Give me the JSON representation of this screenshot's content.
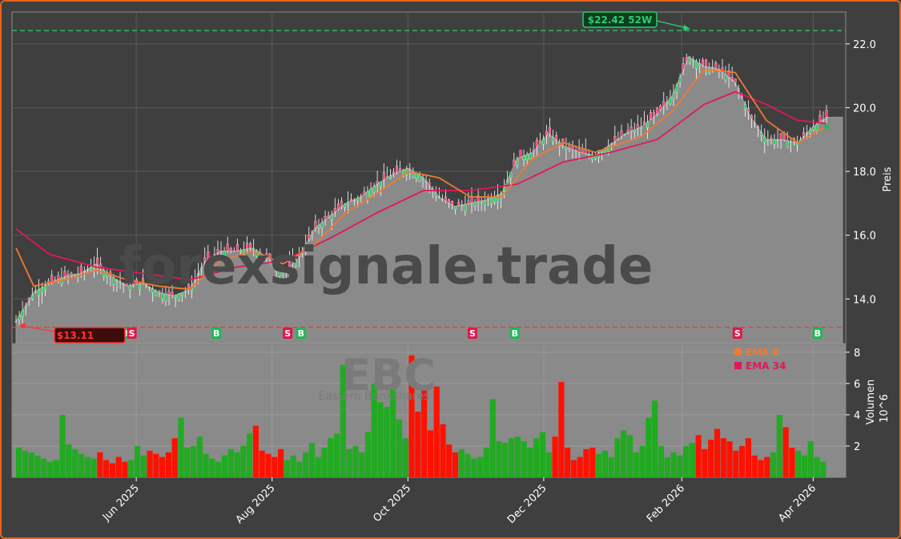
{
  "watermark": {
    "site": "forexsignale.trade",
    "ticker": "EBC",
    "company": "Eastern Bankshares"
  },
  "colors": {
    "ema8": "#f07a30",
    "ema34": "#e0185a",
    "up": "#22aa22",
    "down": "#ff1100",
    "buy": "#1db954",
    "sell": "#e0184a",
    "high_line": "#2ecc71",
    "low_line": "#ff3333"
  },
  "price_axis": {
    "label": "Preis",
    "ticks": [
      "14.0",
      "16.0",
      "18.0",
      "20.0",
      "22.0"
    ]
  },
  "volume_axis": {
    "label": "Volumen",
    "exponent": "10^6",
    "ticks": [
      "2",
      "4",
      "6",
      "8"
    ]
  },
  "x_ticks": [
    "Jun 2025",
    "Aug 2025",
    "Oct 2025",
    "Dec 2025",
    "Feb 2026",
    "Apr 2026"
  ],
  "legend": [
    {
      "name": "EMA 8"
    },
    {
      "name": "EMA 34"
    }
  ],
  "annotations": {
    "high": "$22.42 52W",
    "low": "$13.11"
  },
  "signals": [
    {
      "type": "B",
      "label": "B"
    },
    {
      "type": "S",
      "label": "S"
    },
    {
      "type": "B",
      "label": "B"
    },
    {
      "type": "S",
      "label": "S"
    },
    {
      "type": "B",
      "label": "B"
    },
    {
      "type": "S",
      "label": "S"
    },
    {
      "type": "B",
      "label": "B"
    },
    {
      "type": "S",
      "label": "S"
    },
    {
      "type": "B",
      "label": "B"
    }
  ],
  "chart_data": {
    "type": "line",
    "title": "",
    "ylabel": "Preis",
    "ylim": [
      12.6,
      23.0
    ],
    "x_range": [
      "2025-04-08",
      "2026-04-07"
    ],
    "high_52w": 22.42,
    "low_52w": 13.11,
    "close_series": [
      [
        "2025-04-08",
        13.3
      ],
      [
        "2025-04-16",
        14.2
      ],
      [
        "2025-04-23",
        14.5
      ],
      [
        "2025-04-30",
        14.7
      ],
      [
        "2025-05-07",
        14.8
      ],
      [
        "2025-05-14",
        15.1
      ],
      [
        "2025-05-21",
        14.7
      ],
      [
        "2025-05-28",
        14.4
      ],
      [
        "2025-06-04",
        14.5
      ],
      [
        "2025-06-11",
        14.2
      ],
      [
        "2025-06-18",
        14.1
      ],
      [
        "2025-06-25",
        14.3
      ],
      [
        "2025-07-02",
        15.2
      ],
      [
        "2025-07-09",
        15.5
      ],
      [
        "2025-07-16",
        15.5
      ],
      [
        "2025-07-23",
        15.6
      ],
      [
        "2025-07-30",
        15.3
      ],
      [
        "2025-08-06",
        14.8
      ],
      [
        "2025-08-13",
        15.3
      ],
      [
        "2025-08-20",
        16.2
      ],
      [
        "2025-08-27",
        16.6
      ],
      [
        "2025-09-03",
        17.0
      ],
      [
        "2025-09-10",
        17.2
      ],
      [
        "2025-09-17",
        17.6
      ],
      [
        "2025-09-24",
        17.9
      ],
      [
        "2025-10-01",
        18.1
      ],
      [
        "2025-10-08",
        17.8
      ],
      [
        "2025-10-15",
        17.2
      ],
      [
        "2025-10-22",
        16.9
      ],
      [
        "2025-10-29",
        17.0
      ],
      [
        "2025-11-05",
        17.1
      ],
      [
        "2025-11-12",
        17.3
      ],
      [
        "2025-11-19",
        18.4
      ],
      [
        "2025-11-26",
        18.6
      ],
      [
        "2025-12-03",
        19.2
      ],
      [
        "2025-12-10",
        18.8
      ],
      [
        "2025-12-17",
        18.6
      ],
      [
        "2025-12-24",
        18.5
      ],
      [
        "2026-01-07",
        19.2
      ],
      [
        "2026-01-14",
        19.4
      ],
      [
        "2026-01-21",
        19.8
      ],
      [
        "2026-01-28",
        20.4
      ],
      [
        "2026-02-04",
        21.6
      ],
      [
        "2026-02-11",
        21.3
      ],
      [
        "2026-02-18",
        21.2
      ],
      [
        "2026-02-25",
        20.8
      ],
      [
        "2026-03-04",
        19.7
      ],
      [
        "2026-03-11",
        19.0
      ],
      [
        "2026-03-18",
        19.0
      ],
      [
        "2026-03-25",
        18.9
      ],
      [
        "2026-04-01",
        19.4
      ],
      [
        "2026-04-07",
        19.7
      ]
    ],
    "ema8_series": [
      [
        "2025-04-08",
        15.6
      ],
      [
        "2025-04-16",
        14.4
      ],
      [
        "2025-04-30",
        14.6
      ],
      [
        "2025-05-14",
        14.9
      ],
      [
        "2025-05-28",
        14.6
      ],
      [
        "2025-06-11",
        14.4
      ],
      [
        "2025-06-25",
        14.3
      ],
      [
        "2025-07-09",
        15.2
      ],
      [
        "2025-07-23",
        15.5
      ],
      [
        "2025-08-06",
        15.1
      ],
      [
        "2025-08-20",
        15.7
      ],
      [
        "2025-09-03",
        16.7
      ],
      [
        "2025-09-17",
        17.3
      ],
      [
        "2025-10-01",
        18.0
      ],
      [
        "2025-10-15",
        17.8
      ],
      [
        "2025-10-29",
        17.2
      ],
      [
        "2025-11-12",
        17.2
      ],
      [
        "2025-11-26",
        18.4
      ],
      [
        "2025-12-10",
        18.9
      ],
      [
        "2025-12-24",
        18.6
      ],
      [
        "2026-01-14",
        19.1
      ],
      [
        "2026-01-28",
        19.9
      ],
      [
        "2026-02-11",
        21.2
      ],
      [
        "2026-02-25",
        21.1
      ],
      [
        "2026-03-11",
        19.6
      ],
      [
        "2026-03-25",
        18.9
      ],
      [
        "2026-04-07",
        19.4
      ]
    ],
    "ema34_series": [
      [
        "2025-04-08",
        16.2
      ],
      [
        "2025-04-23",
        15.4
      ],
      [
        "2025-05-14",
        15.0
      ],
      [
        "2025-06-04",
        14.8
      ],
      [
        "2025-06-25",
        14.6
      ],
      [
        "2025-07-16",
        15.0
      ],
      [
        "2025-08-06",
        15.2
      ],
      [
        "2025-08-27",
        15.9
      ],
      [
        "2025-09-17",
        16.7
      ],
      [
        "2025-10-08",
        17.4
      ],
      [
        "2025-10-29",
        17.4
      ],
      [
        "2025-11-19",
        17.6
      ],
      [
        "2025-12-10",
        18.3
      ],
      [
        "2025-12-31",
        18.6
      ],
      [
        "2026-01-21",
        19.0
      ],
      [
        "2026-02-11",
        20.1
      ],
      [
        "2026-02-25",
        20.5
      ],
      [
        "2026-03-11",
        20.1
      ],
      [
        "2026-03-25",
        19.6
      ],
      [
        "2026-04-07",
        19.5
      ]
    ],
    "volume_millions": [
      1.9,
      1.7,
      1.6,
      1.4,
      1.2,
      1.0,
      1.1,
      4.0,
      2.1,
      1.8,
      1.5,
      1.3,
      1.2,
      1.6,
      1.1,
      0.9,
      1.3,
      1.0,
      1.1,
      2.0,
      1.4,
      1.7,
      1.5,
      1.3,
      1.6,
      2.5,
      3.8,
      1.9,
      2.0,
      2.6,
      1.5,
      1.2,
      1.0,
      1.4,
      1.8,
      1.6,
      2.0,
      2.8,
      3.3,
      1.7,
      1.5,
      1.3,
      1.8,
      1.1,
      1.4,
      1.0,
      1.6,
      2.2,
      1.3,
      1.9,
      2.5,
      2.8,
      7.2,
      1.8,
      2.0,
      1.6,
      2.9,
      6.0,
      4.8,
      4.5,
      5.6,
      3.7,
      2.5,
      7.8,
      4.2,
      5.9,
      3.0,
      5.8,
      3.4,
      2.1,
      1.6,
      1.8,
      1.5,
      1.2,
      1.3,
      1.9,
      5.0,
      2.3,
      2.2,
      2.5,
      2.6,
      2.3,
      1.9,
      2.5,
      2.9,
      1.6,
      2.6,
      6.1,
      1.9,
      1.1,
      1.3,
      1.8,
      1.9,
      1.5,
      1.7,
      1.3,
      2.5,
      3.0,
      2.7,
      1.6,
      2.0,
      3.8,
      4.9,
      2.0,
      1.3,
      1.6,
      1.4,
      2.0,
      2.2,
      2.7,
      1.8,
      2.4,
      3.1,
      2.5,
      2.3,
      1.7,
      2.0,
      2.5,
      1.4,
      1.1,
      1.3,
      1.6,
      4.0,
      3.2,
      1.9,
      1.7,
      1.4,
      2.3,
      1.3,
      1.0
    ],
    "signals": [
      {
        "date": "2025-05-27",
        "type": "B"
      },
      {
        "date": "2025-05-30",
        "type": "S"
      },
      {
        "date": "2025-07-07",
        "type": "B"
      },
      {
        "date": "2025-08-08",
        "type": "S"
      },
      {
        "date": "2025-08-14",
        "type": "B"
      },
      {
        "date": "2025-10-30",
        "type": "S"
      },
      {
        "date": "2025-11-18",
        "type": "B"
      },
      {
        "date": "2026-02-26",
        "type": "S"
      },
      {
        "date": "2026-04-03",
        "type": "B"
      }
    ],
    "volume_ylim": [
      0,
      8.5
    ],
    "legend_position": "upper right of volume panel",
    "grid": true
  }
}
